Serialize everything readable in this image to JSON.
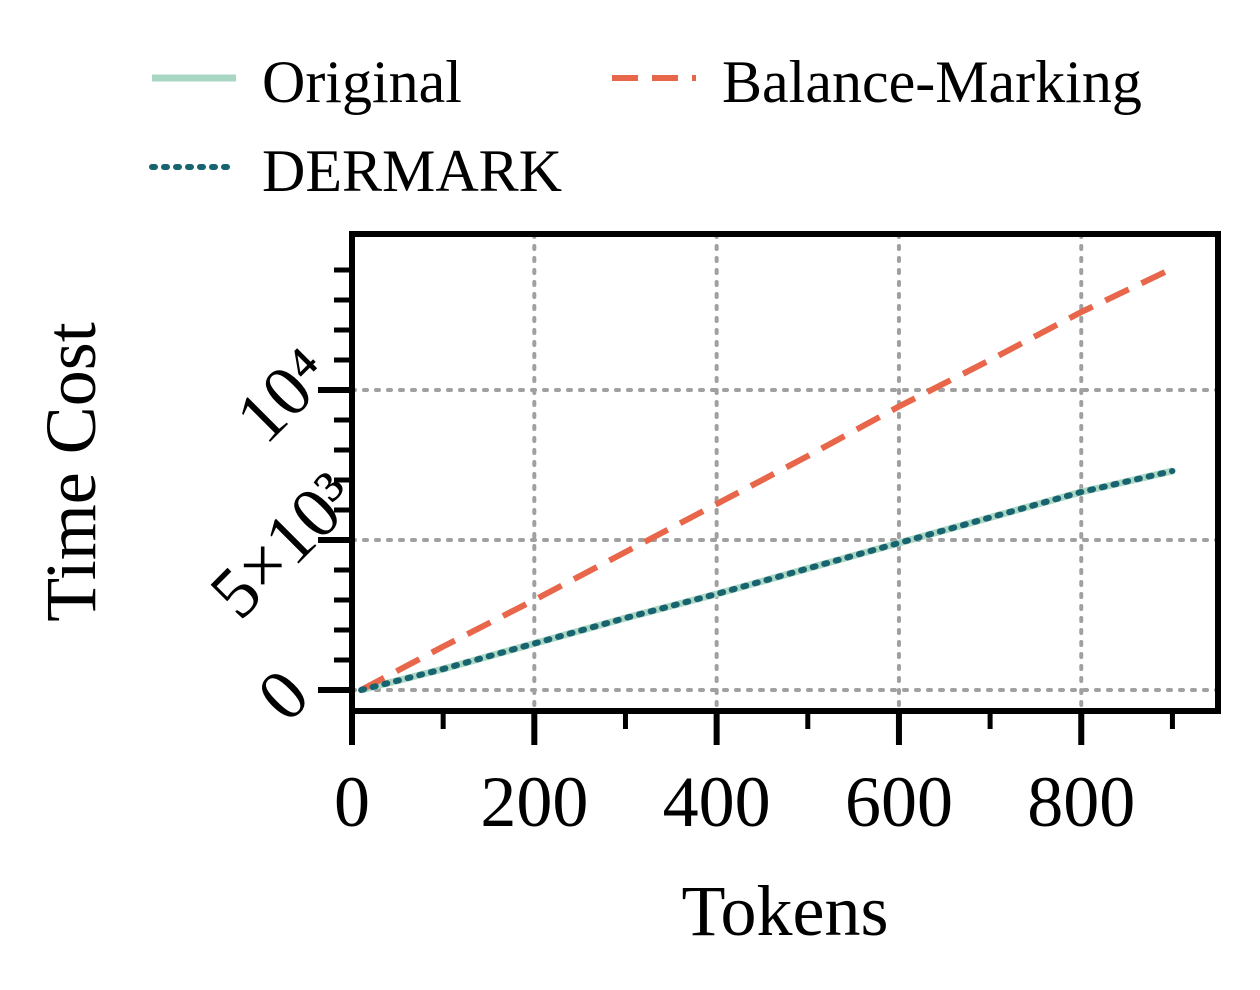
{
  "chart_data": {
    "type": "line",
    "xlabel": "Tokens",
    "ylabel": "Time Cost",
    "xlim": [
      0,
      950
    ],
    "ylim": [
      -700,
      15200
    ],
    "x_ticks": [
      0,
      200,
      400,
      600,
      800
    ],
    "x_tick_labels": [
      "0",
      "200",
      "400",
      "600",
      "800"
    ],
    "y_ticks": [
      0,
      5000,
      10000
    ],
    "y_tick_labels": [
      "0",
      "5×10³",
      "10⁴"
    ],
    "grid": true,
    "legend_position": "top",
    "series": [
      {
        "name": "Original",
        "color": "#aad7c4",
        "style": "solid",
        "x": [
          10,
          100,
          200,
          300,
          400,
          500,
          600,
          700,
          800,
          900
        ],
        "y": [
          0,
          700,
          1550,
          2400,
          3200,
          4050,
          4900,
          5750,
          6600,
          7300
        ]
      },
      {
        "name": "Balance-Marking",
        "color": "#e8664a",
        "style": "dashed",
        "x": [
          10,
          100,
          200,
          300,
          400,
          500,
          600,
          700,
          800,
          900
        ],
        "y": [
          0,
          1450,
          3000,
          4600,
          6200,
          7800,
          9450,
          11000,
          12600,
          14050
        ]
      },
      {
        "name": "DERMARK",
        "color": "#17636f",
        "style": "dotted",
        "x": [
          10,
          100,
          200,
          300,
          400,
          500,
          600,
          700,
          800,
          900
        ],
        "y": [
          0,
          700,
          1550,
          2400,
          3200,
          4050,
          4900,
          5750,
          6600,
          7300
        ]
      }
    ]
  }
}
